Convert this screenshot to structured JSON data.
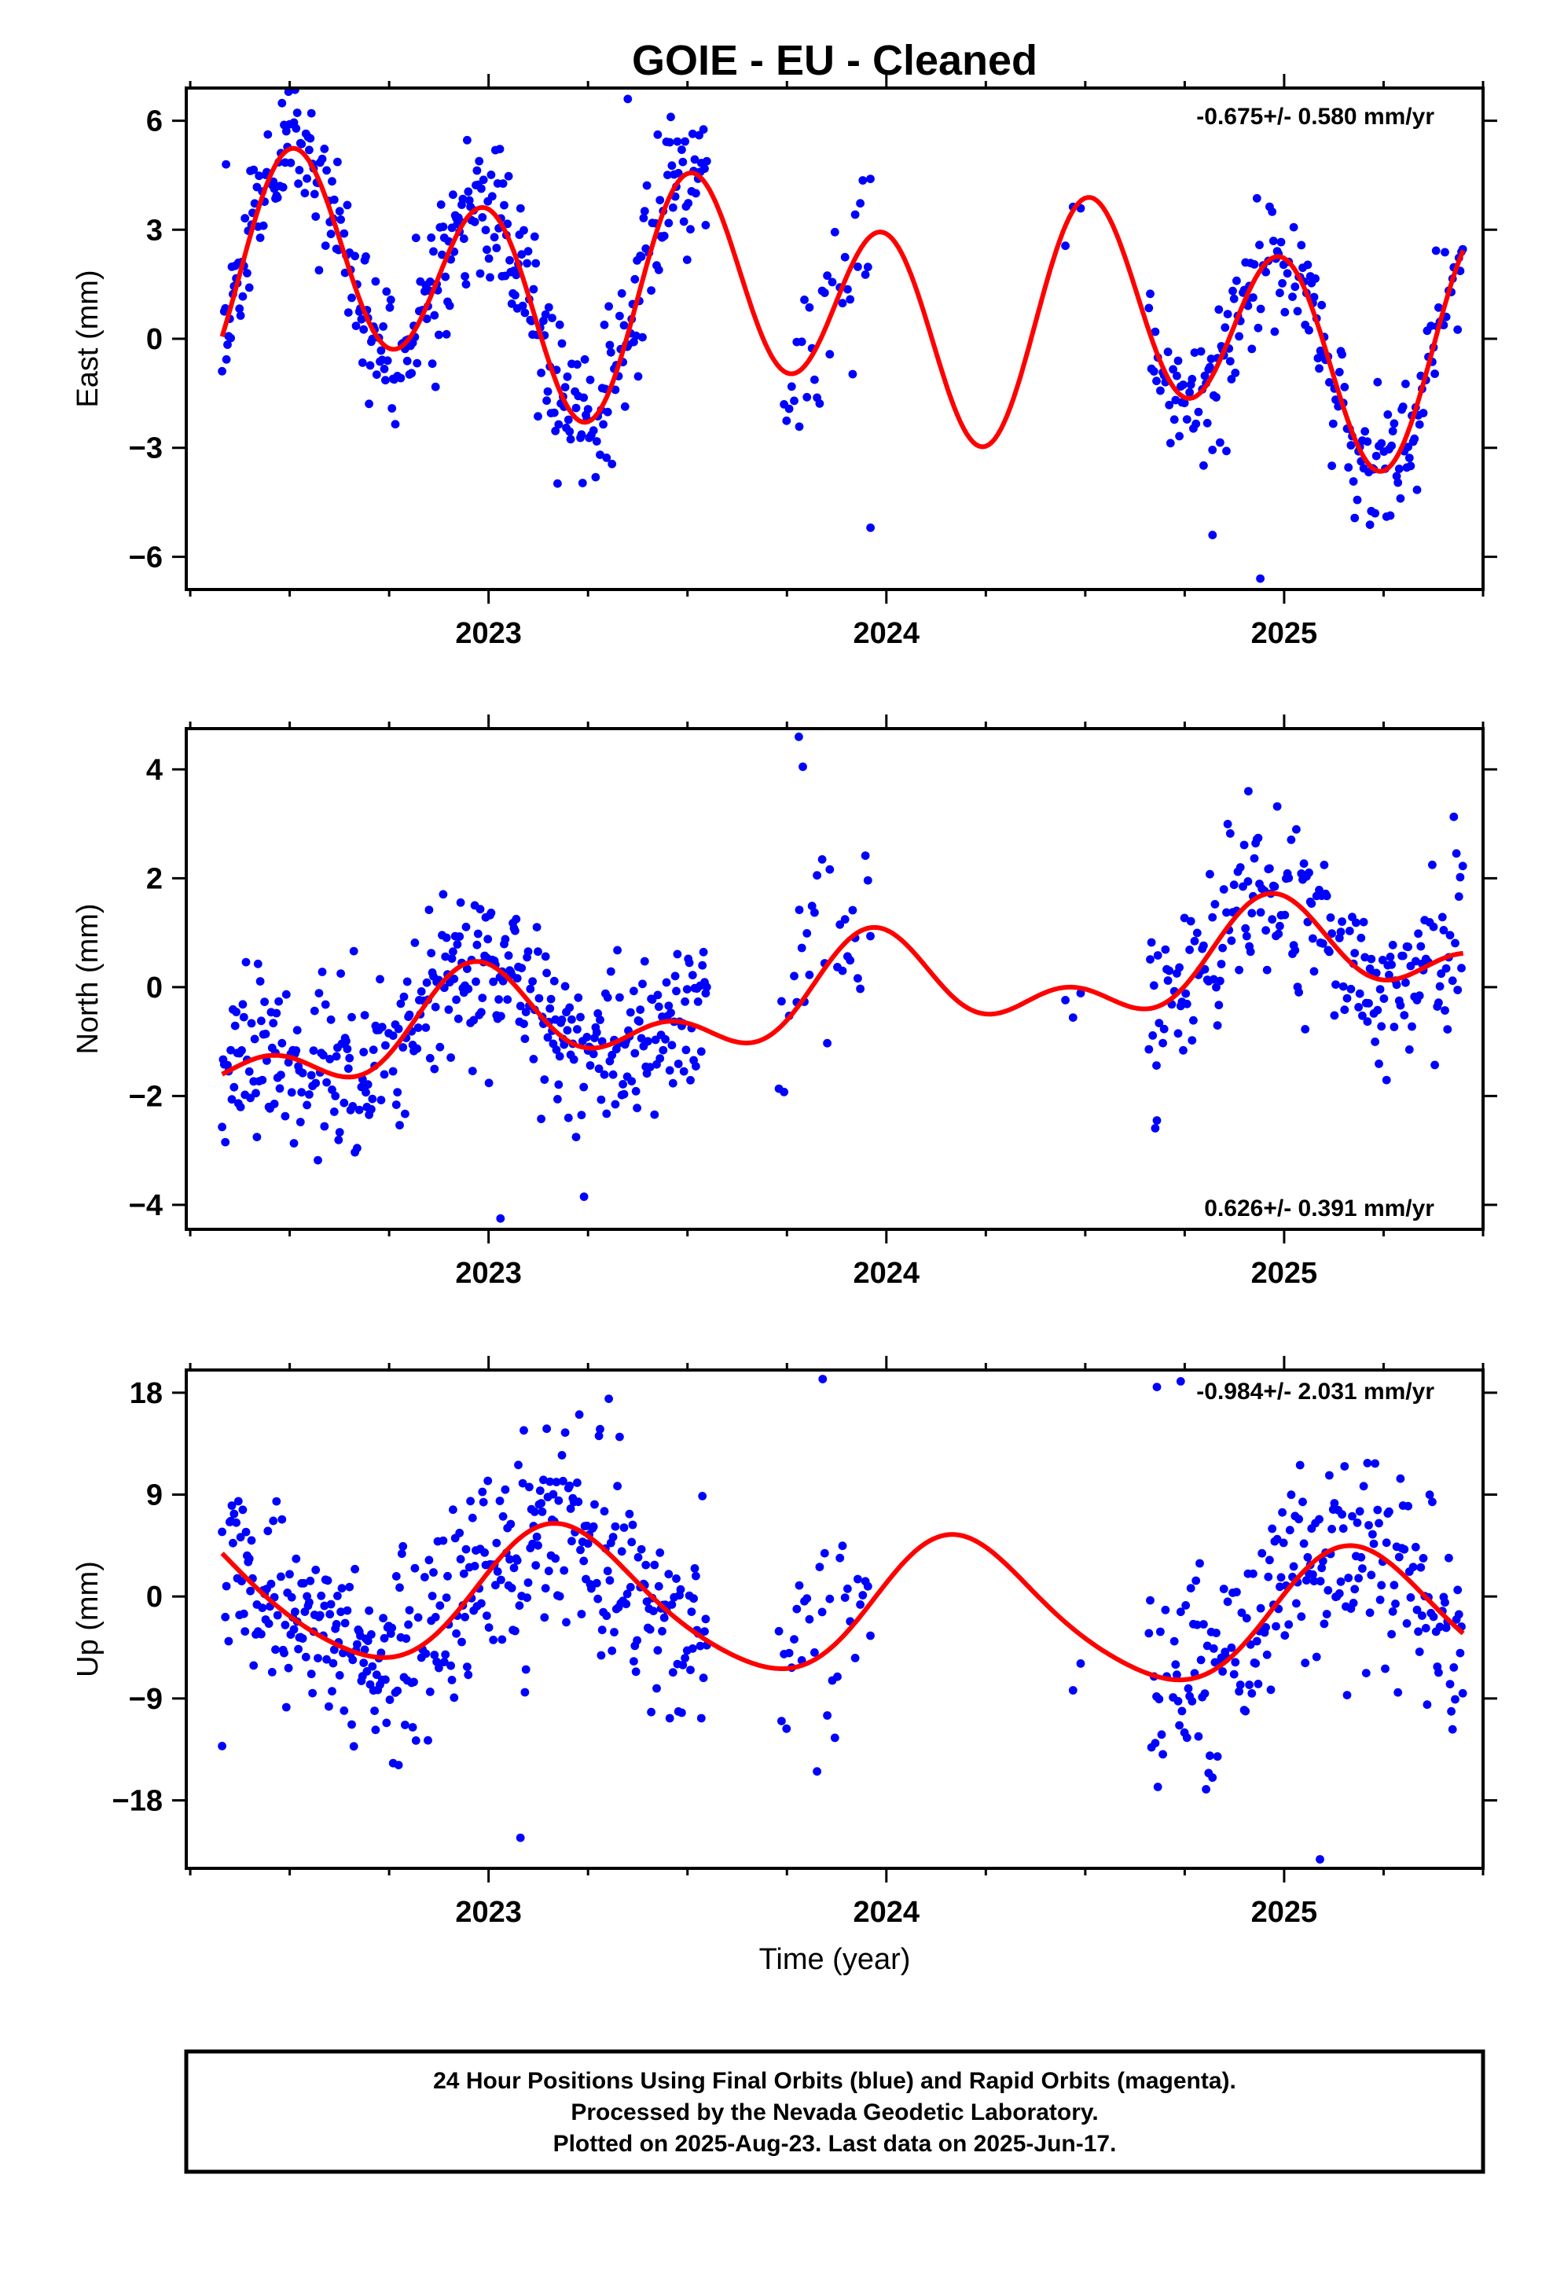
{
  "title": "GOIE  - EU - Cleaned",
  "xlabel": "Time (year)",
  "footer": {
    "line1": "24 Hour Positions Using Final Orbits (blue) and Rapid Orbits (magenta).",
    "line2": "Processed by the Nevada Geodetic Laboratory.",
    "line3": "Plotted on 2025-Aug-23. Last data on 2025-Jun-17."
  },
  "colors": {
    "data": "#0000ff",
    "fit": "#ff0000",
    "frame": "#000000"
  },
  "chart_data": [
    {
      "type": "scatter",
      "ylabel": "East (mm)",
      "rate_label": "-0.675+/- 0.580 mm/yr",
      "xlim": [
        2022.24,
        2025.5
      ],
      "ylim": [
        -6.9,
        6.9
      ],
      "yticks": [
        6,
        3,
        0,
        -3,
        -6
      ],
      "ytick_labels": [
        "6",
        "3",
        "0",
        "−3",
        "−6"
      ],
      "xticks": [
        2023,
        2024,
        2025
      ],
      "xtick_labels": [
        "2023",
        "2024",
        "2025"
      ],
      "rate": -0.675,
      "model": {
        "offset": 0.8,
        "t0": 2024.0,
        "trend": -0.675,
        "a1": -0.84,
        "b1": -0.66,
        "a2": -0.03,
        "b2": 2.75
      },
      "segments": [
        [
          2022.33,
          2022.76,
          1.0,
          7
        ],
        [
          2022.76,
          2023.55,
          1.0,
          7
        ],
        [
          2023.73,
          2023.96,
          1.2,
          3
        ],
        [
          2024.45,
          2024.5,
          0.5,
          1
        ],
        [
          2024.66,
          2025.45,
          1.0,
          6
        ]
      ],
      "outliers": [
        [
          2023.35,
          6.6
        ],
        [
          2023.96,
          -5.2
        ],
        [
          2024.94,
          -6.6
        ],
        [
          2024.82,
          -5.4
        ],
        [
          2022.34,
          4.8
        ]
      ],
      "seed": 11
    },
    {
      "type": "scatter",
      "ylabel": "North (mm)",
      "rate_label": "0.626+/- 0.391 mm/yr",
      "xlim": [
        2022.24,
        2025.5
      ],
      "ylim": [
        -4.45,
        4.75
      ],
      "yticks": [
        4,
        2,
        0,
        -2,
        -4
      ],
      "ytick_labels": [
        "4",
        "2",
        "0",
        "−2",
        "−4"
      ],
      "xticks": [
        2023,
        2024,
        2025
      ],
      "xtick_labels": [
        "2023",
        "2024",
        "2025"
      ],
      "rate": 0.626,
      "model": {
        "offset": -0.1,
        "t0": 2024.0,
        "trend": 0.626,
        "a1": -0.1,
        "b1": 0.7,
        "a2": -0.25,
        "b2": 0.45
      },
      "segments": [
        [
          2022.33,
          2022.76,
          0.75,
          7
        ],
        [
          2022.76,
          2023.55,
          0.75,
          7
        ],
        [
          2023.73,
          2023.96,
          0.95,
          3
        ],
        [
          2024.45,
          2024.5,
          0.5,
          1
        ],
        [
          2024.66,
          2025.45,
          0.8,
          6
        ]
      ],
      "outliers": [
        [
          2023.78,
          4.6
        ],
        [
          2023.79,
          4.05
        ],
        [
          2023.03,
          -4.25
        ],
        [
          2023.24,
          -3.85
        ],
        [
          2024.91,
          3.6
        ],
        [
          2024.68,
          -2.45
        ]
      ],
      "seed": 23
    },
    {
      "type": "scatter",
      "ylabel": "Up (mm)",
      "rate_label": "-0.984+/- 2.031 mm/yr",
      "xlim": [
        2022.24,
        2025.5
      ],
      "ylim": [
        -24.0,
        20.0
      ],
      "yticks": [
        18,
        9,
        0,
        -9,
        -18
      ],
      "ytick_labels": [
        "18",
        "9",
        "0",
        "−9",
        "−18"
      ],
      "xticks": [
        2023,
        2024,
        2025
      ],
      "xtick_labels": [
        "2023",
        "2024",
        "2025"
      ],
      "rate": -0.984,
      "model": {
        "offset": -1.0,
        "t0": 2024.0,
        "trend": -0.984,
        "a1": 5.6,
        "b1": 2.2,
        "a2": 0.8,
        "b2": 0.0
      },
      "segments": [
        [
          2022.33,
          2022.76,
          3.5,
          7
        ],
        [
          2022.76,
          2023.55,
          4.5,
          7
        ],
        [
          2023.73,
          2023.96,
          4.0,
          3
        ],
        [
          2024.45,
          2024.5,
          2.5,
          1
        ],
        [
          2024.66,
          2025.45,
          4.5,
          6
        ]
      ],
      "outliers": [
        [
          2023.08,
          -21.3
        ],
        [
          2025.09,
          -23.2
        ],
        [
          2023.84,
          19.2
        ],
        [
          2024.68,
          18.5
        ],
        [
          2024.74,
          19.0
        ],
        [
          2022.33,
          -13.2
        ]
      ],
      "seed": 37
    }
  ]
}
